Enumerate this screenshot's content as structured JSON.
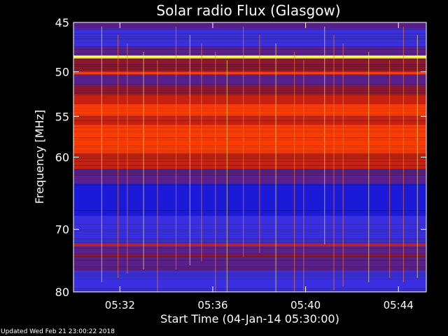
{
  "chart_data": {
    "type": "heatmap",
    "title": "Solar radio Flux (Glasgow)",
    "xlabel": "Start Time (04-Jan-14 05:30:00)",
    "ylabel": "Frequency [MHz]",
    "x_unit": "minutes after 05:30:00",
    "xlim": [
      0,
      15.2
    ],
    "ylim": [
      80,
      45
    ],
    "y_scale": "log",
    "x_ticks": [
      {
        "value": 2,
        "label": "05:32"
      },
      {
        "value": 6,
        "label": "05:36"
      },
      {
        "value": 10,
        "label": "05:40"
      },
      {
        "value": 14,
        "label": "05:44"
      }
    ],
    "y_ticks": [
      {
        "value": 45,
        "label": "45"
      },
      {
        "value": 50,
        "label": "50"
      },
      {
        "value": 55,
        "label": "55"
      },
      {
        "value": 60,
        "label": "60"
      },
      {
        "value": 70,
        "label": "70"
      },
      {
        "value": 80,
        "label": "80"
      }
    ],
    "colormap": [
      "#1a1ad8",
      "#3a2fe0",
      "#5a1f8a",
      "#8a1730",
      "#c82010",
      "#ff3a00",
      "#ff9a20",
      "#ffff60"
    ],
    "frequency_bands": [
      {
        "freq_from": 45.0,
        "freq_to": 45.6,
        "level": 0.3
      },
      {
        "freq_from": 45.6,
        "freq_to": 47.4,
        "level": 0.08
      },
      {
        "freq_from": 47.4,
        "freq_to": 48.3,
        "level": 0.32
      },
      {
        "freq_from": 48.3,
        "freq_to": 48.6,
        "level": 0.98
      },
      {
        "freq_from": 48.6,
        "freq_to": 50.0,
        "level": 0.36
      },
      {
        "freq_from": 50.0,
        "freq_to": 50.3,
        "level": 0.72
      },
      {
        "freq_from": 50.3,
        "freq_to": 51.5,
        "level": 0.3
      },
      {
        "freq_from": 51.5,
        "freq_to": 52.5,
        "level": 0.4
      },
      {
        "freq_from": 52.5,
        "freq_to": 53.6,
        "level": 0.62
      },
      {
        "freq_from": 53.6,
        "freq_to": 55.0,
        "level": 0.66
      },
      {
        "freq_from": 55.0,
        "freq_to": 56.0,
        "level": 0.5
      },
      {
        "freq_from": 56.0,
        "freq_to": 59.5,
        "level": 0.78
      },
      {
        "freq_from": 59.5,
        "freq_to": 61.5,
        "level": 0.55
      },
      {
        "freq_from": 61.5,
        "freq_to": 63.5,
        "level": 0.28
      },
      {
        "freq_from": 63.5,
        "freq_to": 68.0,
        "level": 0.06
      },
      {
        "freq_from": 68.0,
        "freq_to": 71.0,
        "level": 0.1
      },
      {
        "freq_from": 71.0,
        "freq_to": 72.2,
        "level": 0.18
      },
      {
        "freq_from": 72.2,
        "freq_to": 72.6,
        "level": 0.6
      },
      {
        "freq_from": 72.6,
        "freq_to": 73.8,
        "level": 0.26
      },
      {
        "freq_from": 73.8,
        "freq_to": 74.3,
        "level": 0.45
      },
      {
        "freq_from": 74.3,
        "freq_to": 76.5,
        "level": 0.24
      },
      {
        "freq_from": 76.5,
        "freq_to": 80.0,
        "level": 0.08
      }
    ],
    "vertical_bursts": [
      1.2,
      1.9,
      2.3,
      3.0,
      3.6,
      4.4,
      5.0,
      5.5,
      6.1,
      6.6,
      7.3,
      8.0,
      8.7,
      9.5,
      9.9,
      10.8,
      11.2,
      11.6,
      12.7,
      13.6,
      14.2,
      14.8
    ]
  },
  "footer": {
    "updated": "Updated Wed Feb 21 23:00:22 2018"
  }
}
